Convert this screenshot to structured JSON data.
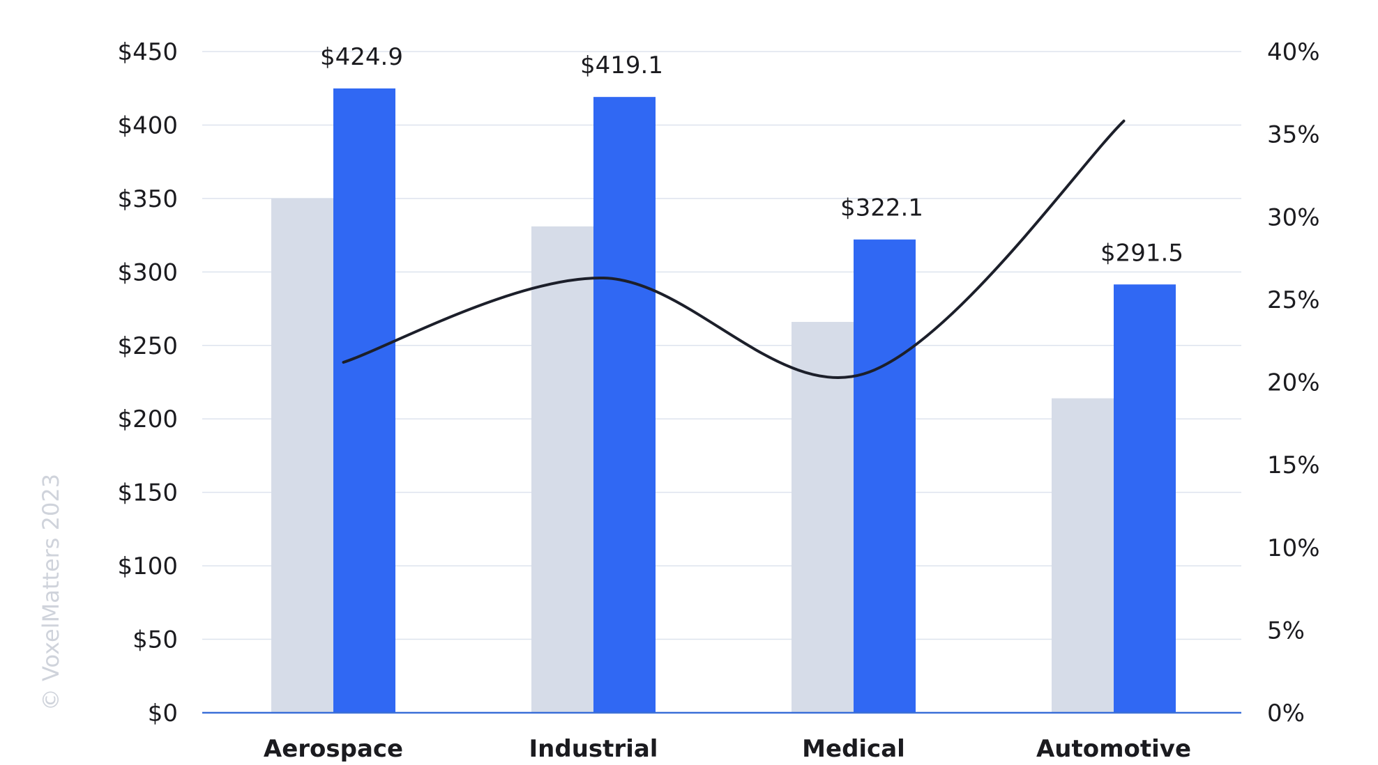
{
  "chart_data": {
    "type": "bar",
    "categories": [
      "Aerospace",
      "Industrial",
      "Medical",
      "Automotive"
    ],
    "series": [
      {
        "values": [
          350,
          331,
          266,
          214
        ],
        "color": "#d6dce8",
        "axis": "left",
        "kind": "bar"
      },
      {
        "values": [
          424.9,
          419.1,
          322.1,
          291.5
        ],
        "color": "#3068f3",
        "axis": "left",
        "kind": "bar"
      },
      {
        "values": [
          21.2,
          26.3,
          20.5,
          35.8
        ],
        "color": "#1c1f2a",
        "axis": "right",
        "kind": "line"
      }
    ],
    "data_labels": [
      "$424.9",
      "$419.1",
      "$322.1",
      "$291.5"
    ],
    "y_left": {
      "ylim": [
        0,
        450
      ],
      "ticks": [
        0,
        50,
        100,
        150,
        200,
        250,
        300,
        350,
        400,
        450
      ],
      "tick_labels": [
        "$0",
        "$50",
        "$100",
        "$150",
        "$200",
        "$250",
        "$300",
        "$350",
        "$400",
        "$450"
      ]
    },
    "y_right": {
      "ylim": [
        0,
        40
      ],
      "ticks": [
        0,
        5,
        10,
        15,
        20,
        25,
        30,
        35,
        40
      ],
      "tick_labels": [
        "0%",
        "5%",
        "10%",
        "15%",
        "20%",
        "25%",
        "30%",
        "35%",
        "40%"
      ]
    },
    "grid": true,
    "title": "",
    "xlabel": "",
    "ylabel": ""
  },
  "watermark": "© VoxelMatters 2023",
  "colors": {
    "grid": "#dde3ee",
    "axis": "#3a6fd8",
    "text": "#1b1b1f",
    "watermark": "#cfd3db"
  }
}
